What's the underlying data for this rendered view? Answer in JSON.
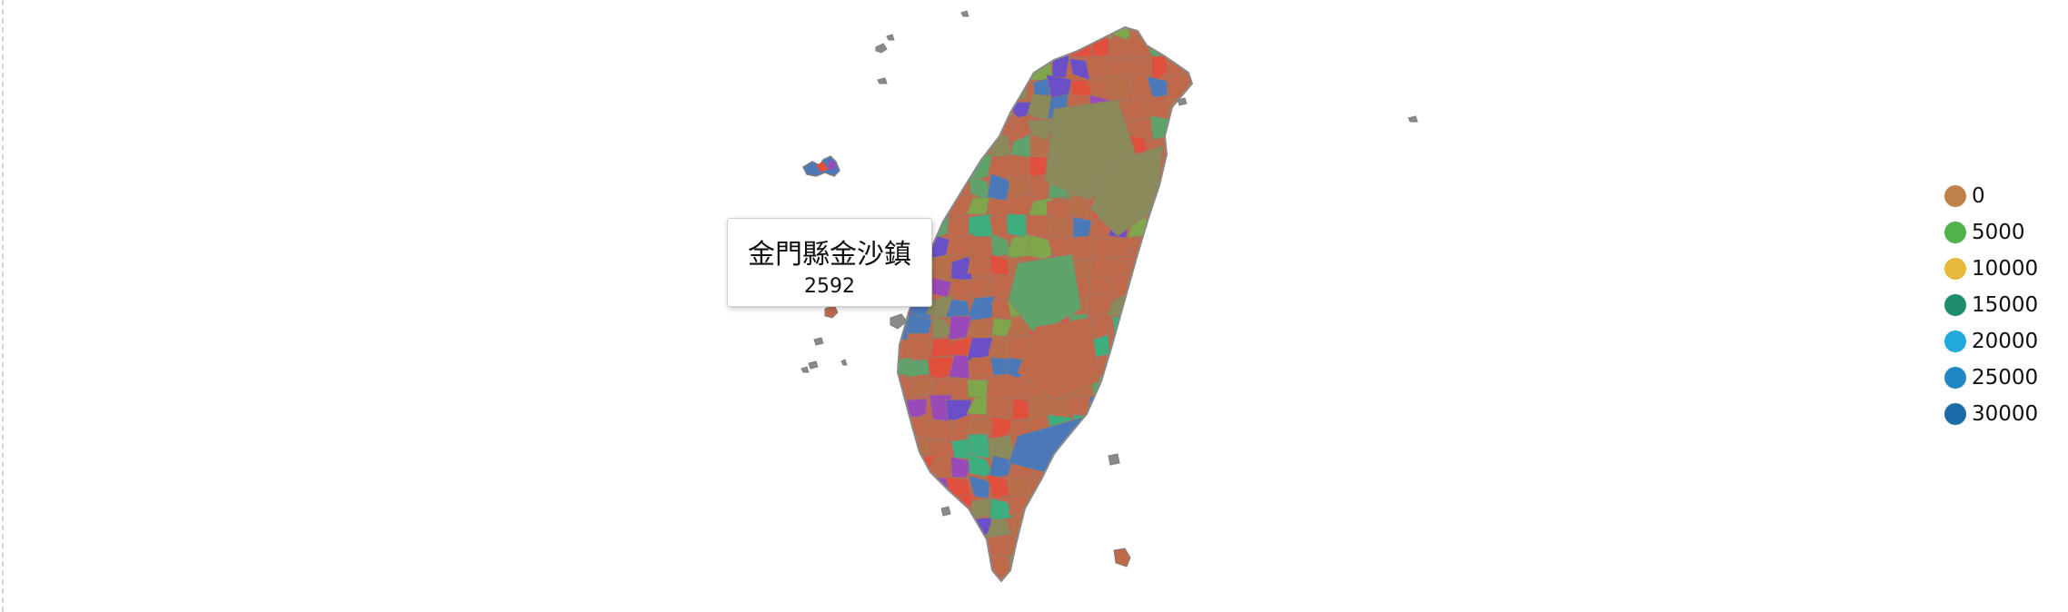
{
  "tooltip": {
    "region_name": "金門縣金沙鎮",
    "value": "2592"
  },
  "legend": {
    "items": [
      {
        "label": "0",
        "color": "#c0814a"
      },
      {
        "label": "5000",
        "color": "#4fb24c"
      },
      {
        "label": "10000",
        "color": "#e6b93b"
      },
      {
        "label": "15000",
        "color": "#1f8c6e"
      },
      {
        "label": "20000",
        "color": "#21aadb"
      },
      {
        "label": "25000",
        "color": "#1f88c4"
      },
      {
        "label": "30000",
        "color": "#1b6ba8"
      }
    ]
  },
  "map": {
    "region_fill_colors": [
      "#c0694a",
      "#b9704a",
      "#8a8a5a",
      "#5fa36a",
      "#3fae7e",
      "#6a4fc8",
      "#4a78b8",
      "#e0503c",
      "#7fa64a",
      "#9a4ab8"
    ]
  }
}
